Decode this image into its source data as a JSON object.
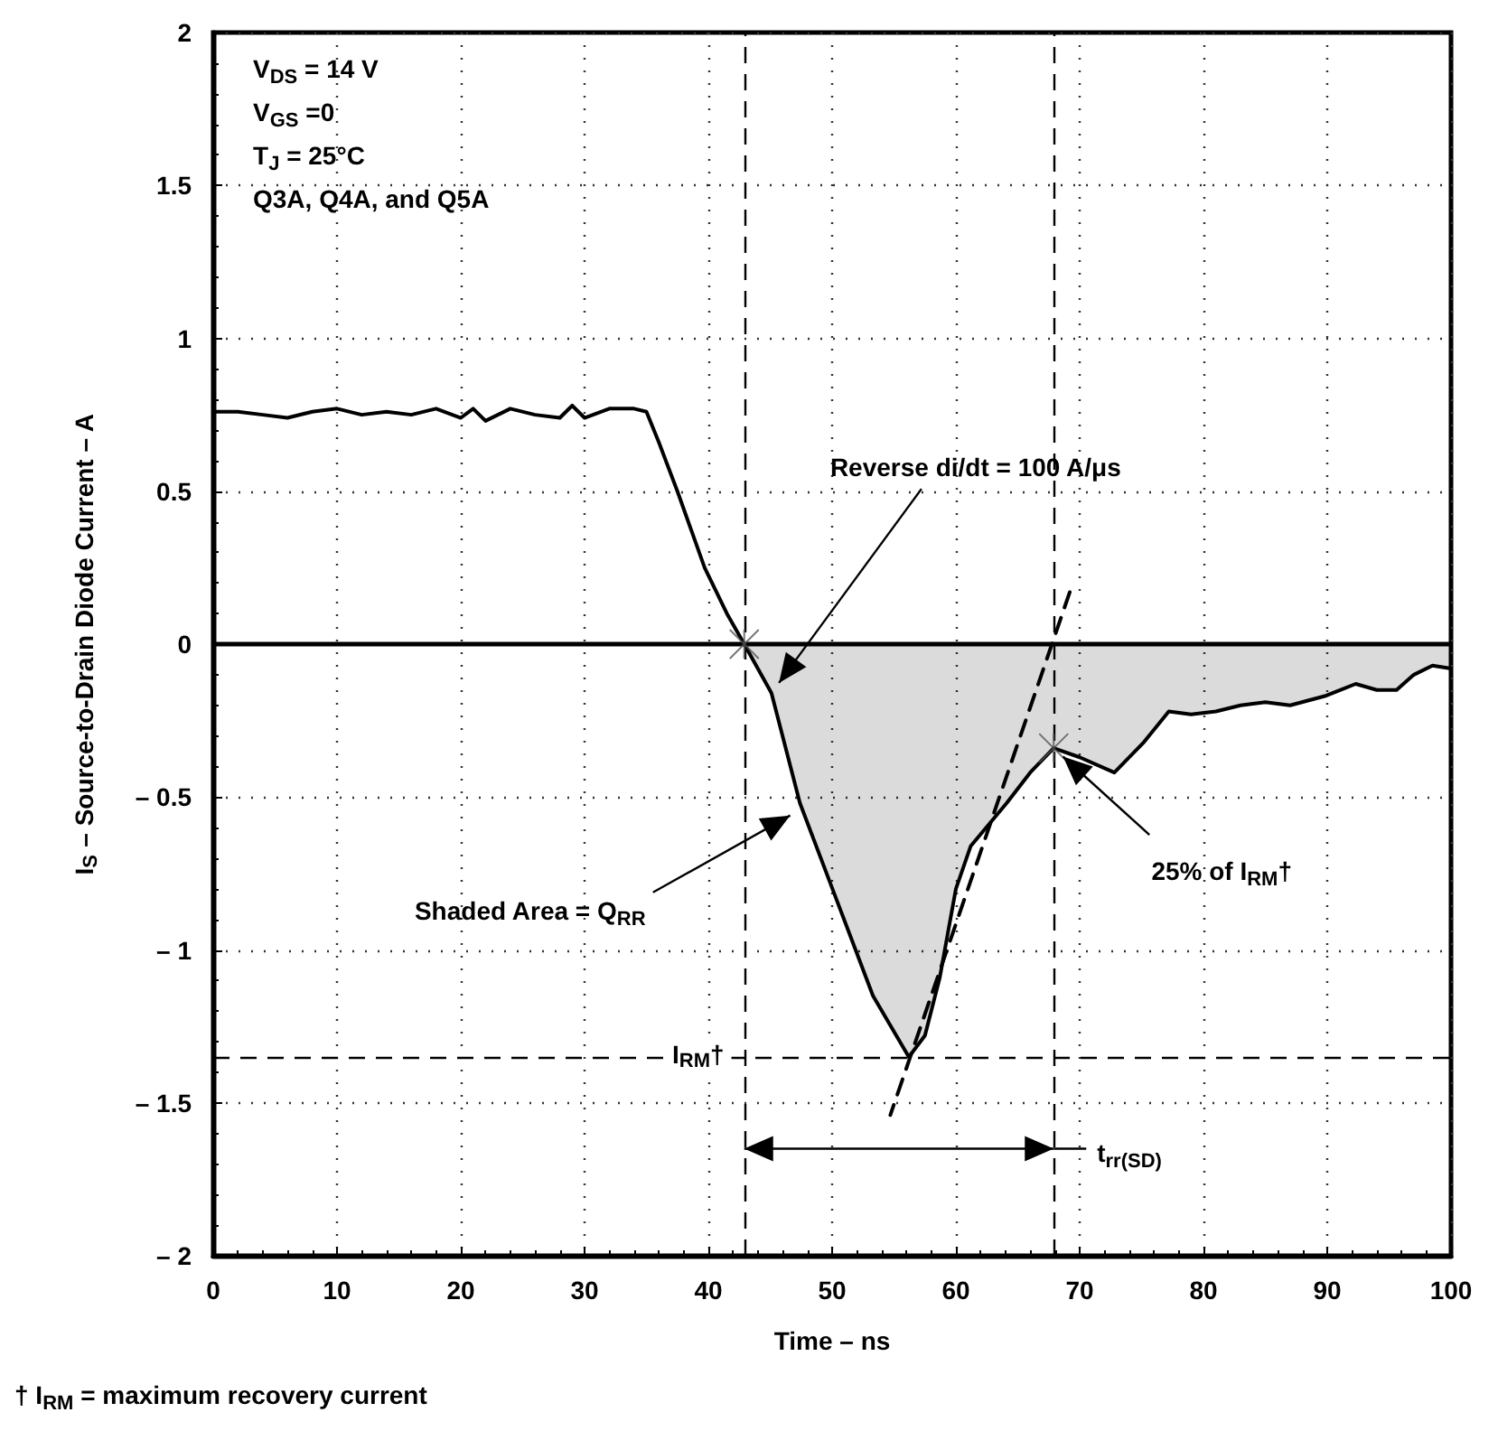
{
  "chart_data": {
    "type": "line",
    "xlabel": "Time – ns",
    "ylabel": "I$_{S}$ – Source-to-Drain Diode Current – A",
    "xlim": [
      0,
      100
    ],
    "xticks": [
      0,
      10,
      20,
      30,
      40,
      50,
      60,
      70,
      80,
      90,
      100
    ],
    "ylim": [
      -2,
      2
    ],
    "yticks": [
      {
        "value": -2,
        "label": "– 2"
      },
      {
        "value": -1.5,
        "label": "– 1.5"
      },
      {
        "value": -1,
        "label": "– 1"
      },
      {
        "value": -0.5,
        "label": "– 0.5"
      },
      0,
      0.5,
      1,
      1.5,
      2
    ],
    "grid": true,
    "series": [
      {
        "color": "#000000",
        "x": [
          0,
          2,
          4,
          6,
          8,
          10,
          12,
          14,
          16,
          18,
          20,
          21,
          22,
          24,
          26,
          28,
          29,
          30,
          32,
          34,
          35,
          36,
          37.5,
          39.7,
          41.5,
          42.9
        ],
        "values": [
          0.76,
          0.76,
          0.75,
          0.74,
          0.76,
          0.77,
          0.75,
          0.76,
          0.75,
          0.77,
          0.74,
          0.77,
          0.73,
          0.77,
          0.75,
          0.74,
          0.78,
          0.74,
          0.77,
          0.77,
          0.76,
          0.66,
          0.5,
          0.25,
          0.1,
          0
        ]
      },
      {
        "type": "area",
        "color": "#000000",
        "x": [
          42.9,
          45.1,
          47.4,
          50.4,
          53.3,
          56.2,
          57.5,
          58.7,
          60,
          61.2,
          64.1,
          66,
          67.9,
          70,
          72.8,
          75.2,
          77.2,
          79,
          81,
          83,
          85,
          87,
          89.8,
          92.3,
          94,
          95.6,
          97,
          98.5,
          100
        ],
        "values": [
          0,
          -0.16,
          -0.52,
          -0.84,
          -1.15,
          -1.35,
          -1.28,
          -1.09,
          -0.8,
          -0.66,
          -0.52,
          -0.42,
          -0.34,
          -0.37,
          -0.42,
          -0.32,
          -0.22,
          -0.23,
          -0.22,
          -0.2,
          -0.19,
          -0.2,
          -0.17,
          -0.13,
          -0.15,
          -0.15,
          -0.1,
          -0.07,
          -0.08
        ]
      },
      {
        "type": "line",
        "color": "#000000",
        "line_style": "dashed",
        "x": [
          69.2,
          54.7
        ],
        "values": [
          0.17,
          -1.54
        ]
      },
      {
        "type": "scatter",
        "color": "#555555",
        "marker": "cross",
        "x": [
          42.9,
          67.9
        ],
        "values": [
          0,
          -0.34
        ]
      }
    ],
    "ref_lines": [
      {
        "axis": "y",
        "value": 0,
        "line_style": "solid",
        "color": "#000000"
      },
      {
        "axis": "x",
        "value": 42.9,
        "line_style": "dashed",
        "color": "#000000"
      },
      {
        "axis": "x",
        "value": 67.9,
        "line_style": "dashed",
        "color": "#000000"
      },
      {
        "axis": "y",
        "value": -1.35,
        "label": "I$_{RM}$†",
        "line_style": "dashed",
        "color": "#000000"
      }
    ],
    "annotations": [
      "V$_{DS}$ = 14 V",
      "V$_{GS}$ =0",
      "T$_{J}$ = 25°C",
      "Q3A, Q4A, and Q5A",
      {
        "text": "Reverse di/dt = 100 A/μs",
        "x": 45.1,
        "y": -0.16
      },
      {
        "text": "Shaded Area = Q$_{RR}$",
        "x": 47.5,
        "y": -0.54
      },
      {
        "text": "25% of I$_{RM}$†",
        "x": 67.9,
        "y": -0.34
      },
      {
        "text": "t$_{rr(SD)}$",
        "x": 67.9,
        "y": -1.65
      },
      "† I$_{RM}$ = maximum recovery current"
    ]
  }
}
